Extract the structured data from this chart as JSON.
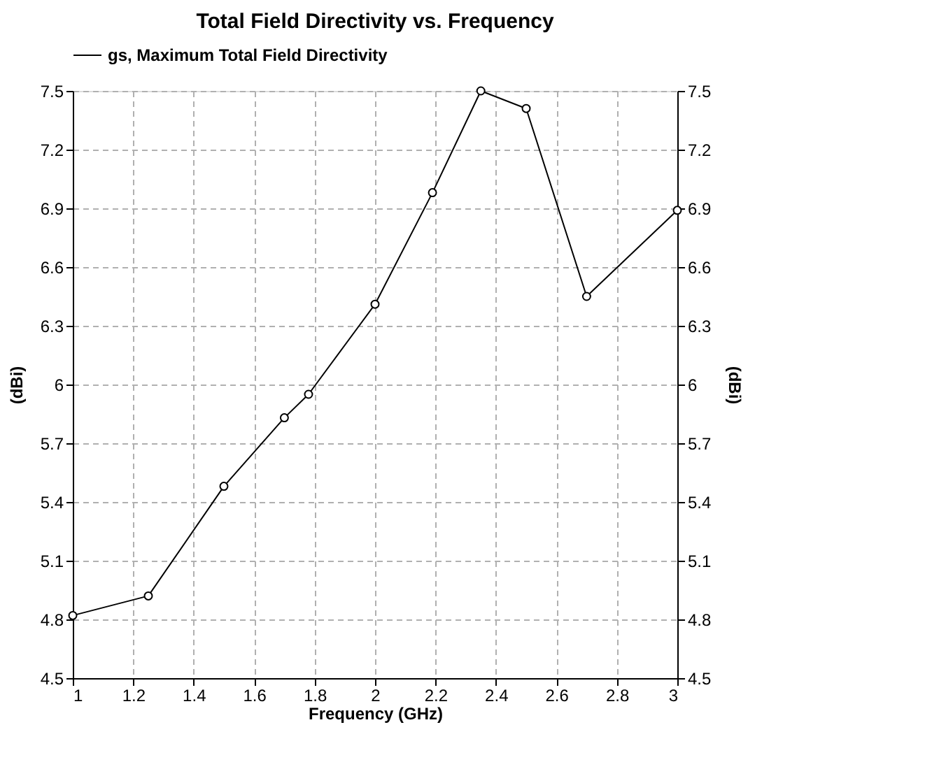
{
  "chart_data": {
    "type": "line",
    "title": "Total Field Directivity vs. Frequency",
    "xlabel": "Frequency (GHz)",
    "ylabel": "(dBi)",
    "y2label": "(dBi)",
    "x": [
      1,
      1.25,
      1.5,
      1.7,
      1.78,
      2,
      2.19,
      2.35,
      2.5,
      2.7,
      3
    ],
    "series": [
      {
        "name": "gs, Maximum Total Field Directivity",
        "color": "#000000",
        "values": [
          4.82,
          4.92,
          5.48,
          5.83,
          5.95,
          6.41,
          6.98,
          7.5,
          7.41,
          6.45,
          6.89
        ]
      }
    ],
    "xlim": [
      1,
      3
    ],
    "xticks": [
      1,
      1.2,
      1.4,
      1.6,
      1.8,
      2,
      2.2,
      2.4,
      2.6,
      2.8,
      3
    ],
    "ylim": [
      4.5,
      7.5
    ],
    "yticks": [
      4.5,
      4.8,
      5.1,
      5.4,
      5.7,
      6,
      6.3,
      6.6,
      6.9,
      7.2,
      7.5
    ],
    "y2lim": [
      4.5,
      7.5
    ],
    "y2ticks": [
      4.5,
      4.8,
      5.1,
      5.4,
      5.7,
      6,
      6.3,
      6.6,
      6.9,
      7.2,
      7.5
    ],
    "grid": true,
    "legend": "top left",
    "marker": "circle",
    "line_style": "solid"
  }
}
